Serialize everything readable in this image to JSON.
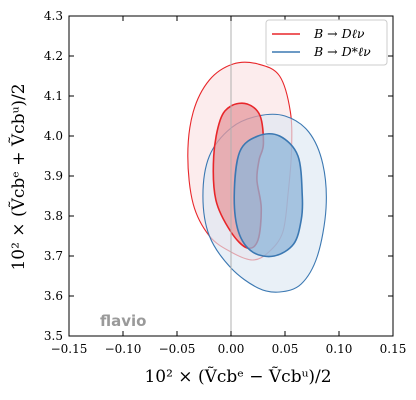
{
  "chart_data": {
    "type": "contour",
    "xlim": [
      -0.15,
      0.15
    ],
    "ylim": [
      3.5,
      4.3
    ],
    "x_ticks": [
      -0.15,
      -0.1,
      -0.05,
      0.0,
      0.05,
      0.1,
      0.15
    ],
    "y_ticks": [
      3.5,
      3.6,
      3.7,
      3.8,
      3.9,
      4.0,
      4.1,
      4.2,
      4.3
    ],
    "x_tick_labels": [
      "−0.15",
      "−0.10",
      "−0.05",
      "0.00",
      "0.05",
      "0.10",
      "0.15"
    ],
    "y_tick_labels": [
      "3.5",
      "3.6",
      "3.7",
      "3.8",
      "3.9",
      "4.0",
      "4.1",
      "4.2",
      "4.3"
    ],
    "xlabel": "10² × (Ṽcbᵉ − Ṽcbᵘ)/2",
    "ylabel": "10² × (Ṽcbᵉ + Ṽcbᵘ)/2",
    "reference_line_x": 0.0,
    "legend_position": "top-right",
    "watermark": "flavio",
    "series": [
      {
        "name": "B → Dℓν",
        "color": "#e8262a",
        "fill_inner": "#e79a9e",
        "fill_outer": "#fbe2e3",
        "contours": [
          {
            "level": "1σ",
            "points": [
              [
                0.03,
                3.98
              ],
              [
                0.027,
                4.05
              ],
              [
                0.015,
                4.08
              ],
              [
                0.0,
                4.075
              ],
              [
                -0.01,
                4.04
              ],
              [
                -0.016,
                3.95
              ],
              [
                -0.014,
                3.84
              ],
              [
                0.0,
                3.76
              ],
              [
                0.015,
                3.72
              ],
              [
                0.025,
                3.74
              ],
              [
                0.028,
                3.82
              ],
              [
                0.024,
                3.89
              ],
              [
                0.026,
                3.94
              ]
            ]
          },
          {
            "level": "2σ",
            "points": [
              [
                0.055,
                4.06
              ],
              [
                0.045,
                4.15
              ],
              [
                0.025,
                4.18
              ],
              [
                0.002,
                4.18
              ],
              [
                -0.02,
                4.14
              ],
              [
                -0.035,
                4.06
              ],
              [
                -0.04,
                3.95
              ],
              [
                -0.035,
                3.83
              ],
              [
                -0.02,
                3.75
              ],
              [
                0.0,
                3.71
              ],
              [
                0.02,
                3.69
              ],
              [
                0.035,
                3.71
              ],
              [
                0.048,
                3.76
              ],
              [
                0.053,
                3.86
              ],
              [
                0.056,
                3.96
              ]
            ]
          }
        ]
      },
      {
        "name": "B → D*ℓν",
        "color": "#3b78b2",
        "fill_inner": "#8db4d8",
        "fill_outer": "#dde8f3",
        "contours": [
          {
            "level": "1σ",
            "points": [
              [
                0.066,
                3.85
              ],
              [
                0.062,
                3.95
              ],
              [
                0.045,
                4.0
              ],
              [
                0.025,
                4.0
              ],
              [
                0.008,
                3.96
              ],
              [
                0.003,
                3.85
              ],
              [
                0.007,
                3.76
              ],
              [
                0.02,
                3.71
              ],
              [
                0.04,
                3.7
              ],
              [
                0.058,
                3.73
              ],
              [
                0.065,
                3.79
              ]
            ]
          },
          {
            "level": "2σ",
            "points": [
              [
                0.088,
                3.82
              ],
              [
                0.085,
                3.93
              ],
              [
                0.072,
                4.01
              ],
              [
                0.05,
                4.05
              ],
              [
                0.025,
                4.05
              ],
              [
                0.0,
                4.02
              ],
              [
                -0.02,
                3.95
              ],
              [
                -0.026,
                3.85
              ],
              [
                -0.02,
                3.75
              ],
              [
                0.0,
                3.67
              ],
              [
                0.025,
                3.62
              ],
              [
                0.045,
                3.61
              ],
              [
                0.065,
                3.63
              ],
              [
                0.08,
                3.7
              ]
            ]
          }
        ]
      }
    ]
  }
}
